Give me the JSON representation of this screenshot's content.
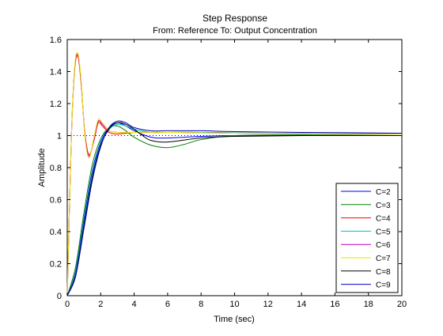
{
  "chart_data": {
    "type": "line",
    "title": "Step Response",
    "subtitle": "From: Reference  To: Output Concentration",
    "xlabel": "Time (sec)",
    "ylabel": "Amplitude",
    "xlim": [
      0,
      20
    ],
    "ylim": [
      0,
      1.6
    ],
    "xticks": [
      "0",
      "2",
      "4",
      "6",
      "8",
      "10",
      "12",
      "14",
      "16",
      "18",
      "20"
    ],
    "yticks": [
      "0",
      "0.2",
      "0.4",
      "0.6",
      "0.8",
      "1",
      "1.2",
      "1.4",
      "1.6"
    ],
    "grid": false,
    "legend_position": "bottom-right",
    "reference_line": {
      "y": 1.0,
      "style": "dotted"
    },
    "series": [
      {
        "name": "C=2",
        "color": "#0000ff",
        "x": [
          0,
          0.5,
          1,
          1.5,
          2,
          2.5,
          3,
          3.5,
          4,
          5,
          6,
          8,
          10,
          14,
          20
        ],
        "y": [
          0,
          0.15,
          0.48,
          0.78,
          0.96,
          1.05,
          1.08,
          1.06,
          1.03,
          0.99,
          0.985,
          0.995,
          1.0,
          1.0,
          1.0
        ]
      },
      {
        "name": "C=3",
        "color": "#008000",
        "x": [
          0,
          0.5,
          1,
          1.5,
          2,
          2.5,
          3,
          3.5,
          4,
          5,
          6,
          7,
          8,
          10,
          14,
          20
        ],
        "y": [
          0,
          0.18,
          0.52,
          0.82,
          0.98,
          1.05,
          1.06,
          1.03,
          0.99,
          0.94,
          0.925,
          0.945,
          0.975,
          1.0,
          1.005,
          1.0
        ]
      },
      {
        "name": "C=4",
        "color": "#ff0000",
        "x": [
          0,
          0.25,
          0.45,
          0.65,
          0.85,
          1.05,
          1.3,
          1.6,
          1.85,
          2.1,
          2.5,
          3,
          4,
          5,
          6,
          8,
          12,
          20
        ],
        "y": [
          0,
          1.0,
          1.42,
          1.49,
          1.3,
          1.02,
          0.88,
          0.97,
          1.08,
          1.06,
          1.02,
          1.01,
          1.02,
          1.02,
          1.02,
          1.02,
          1.015,
          1.012
        ]
      },
      {
        "name": "C=5",
        "color": "#00bfbf",
        "x": [
          0,
          0.5,
          1,
          1.5,
          2,
          2.5,
          3,
          3.5,
          4,
          5,
          6,
          8,
          12,
          20
        ],
        "y": [
          0,
          0.14,
          0.46,
          0.76,
          0.95,
          1.04,
          1.07,
          1.06,
          1.04,
          1.02,
          1.02,
          1.02,
          1.015,
          1.01
        ]
      },
      {
        "name": "C=6",
        "color": "#bf00bf",
        "x": [
          0,
          0.25,
          0.45,
          0.65,
          0.85,
          1.05,
          1.3,
          1.6,
          1.85,
          2.1,
          2.5,
          3,
          4,
          6,
          10,
          20
        ],
        "y": [
          0,
          1.0,
          1.43,
          1.5,
          1.31,
          1.01,
          0.87,
          0.98,
          1.09,
          1.07,
          1.03,
          1.02,
          1.02,
          1.02,
          1.015,
          1.01
        ]
      },
      {
        "name": "C=7",
        "color": "#e6e600",
        "x": [
          0,
          0.25,
          0.45,
          0.65,
          0.85,
          1.05,
          1.3,
          1.6,
          1.85,
          2.1,
          2.5,
          3,
          4,
          6,
          10,
          20
        ],
        "y": [
          0,
          1.0,
          1.44,
          1.51,
          1.32,
          1.0,
          0.86,
          0.99,
          1.1,
          1.08,
          1.03,
          1.02,
          1.02,
          1.02,
          1.015,
          1.01
        ]
      },
      {
        "name": "C=8",
        "color": "#000000",
        "x": [
          0,
          0.5,
          1,
          1.5,
          2,
          2.5,
          3,
          3.5,
          4,
          4.5,
          5,
          6,
          8,
          10,
          14,
          20
        ],
        "y": [
          0,
          0.13,
          0.44,
          0.74,
          0.94,
          1.04,
          1.08,
          1.07,
          1.04,
          1.0,
          0.97,
          0.96,
          0.985,
          0.995,
          1.0,
          1.0
        ]
      },
      {
        "name": "C=9",
        "color": "#0000c0",
        "x": [
          0,
          0.5,
          1,
          1.5,
          2,
          2.5,
          3,
          3.5,
          4,
          5,
          6,
          8,
          10,
          14,
          20
        ],
        "y": [
          0,
          0.12,
          0.42,
          0.72,
          0.93,
          1.05,
          1.09,
          1.08,
          1.05,
          1.03,
          1.03,
          1.03,
          1.025,
          1.02,
          1.015
        ]
      }
    ]
  }
}
